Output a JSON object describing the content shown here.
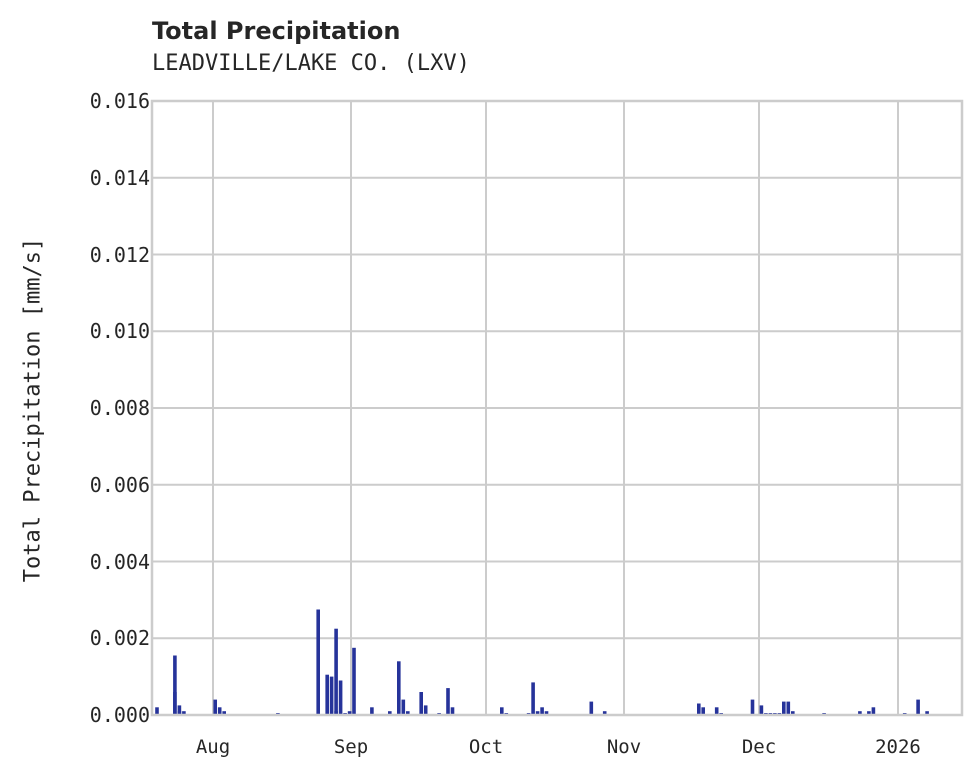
{
  "chart": {
    "title": "Total Precipitation",
    "subtitle": "LEADVILLE/LAKE CO. (LXV)",
    "ylabel": "Total Precipitation [mm/s]",
    "yticks": [
      "0.000",
      "0.002",
      "0.004",
      "0.006",
      "0.008",
      "0.010",
      "0.012",
      "0.014",
      "0.016"
    ],
    "xticks": [
      "Aug",
      "Sep",
      "Oct",
      "Nov",
      "Dec",
      "2026"
    ]
  },
  "colors": {
    "bar": "#26339a",
    "grid": "#cccccc",
    "text": "#262626"
  },
  "chart_data": {
    "type": "bar",
    "title": "Total Precipitation",
    "subtitle": "LEADVILLE/LAKE CO. (LXV)",
    "xlabel": "",
    "ylabel": "Total Precipitation [mm/s]",
    "ylim": [
      0,
      0.016
    ],
    "grid": true,
    "legend": null,
    "x_tick_labels": [
      "Aug",
      "Sep",
      "Oct",
      "Nov",
      "Dec",
      "2026"
    ],
    "x_range_approx": [
      "2025-07-18",
      "2026-01-18"
    ],
    "series": [
      {
        "name": "Total Precipitation",
        "color": "#26339a",
        "points": [
          {
            "date": "2025-07-19",
            "value": 0.0002
          },
          {
            "date": "2025-07-23",
            "value": 0.0006
          },
          {
            "date": "2025-07-23",
            "value": 0.00155
          },
          {
            "date": "2025-07-24",
            "value": 0.00025
          },
          {
            "date": "2025-07-24",
            "value": 0.0001
          },
          {
            "date": "2025-07-25",
            "value": 0.0001
          },
          {
            "date": "2025-08-01",
            "value": 0.0004
          },
          {
            "date": "2025-08-02",
            "value": 0.0002
          },
          {
            "date": "2025-08-03",
            "value": 0.0001
          },
          {
            "date": "2025-08-15",
            "value": 5e-05
          },
          {
            "date": "2025-08-24",
            "value": 0.00275
          },
          {
            "date": "2025-08-26",
            "value": 0.00105
          },
          {
            "date": "2025-08-27",
            "value": 0.001
          },
          {
            "date": "2025-08-28",
            "value": 0.0001
          },
          {
            "date": "2025-08-28",
            "value": 0.00225
          },
          {
            "date": "2025-08-29",
            "value": 0.0009
          },
          {
            "date": "2025-08-30",
            "value": 5e-05
          },
          {
            "date": "2025-08-31",
            "value": 0.0001
          },
          {
            "date": "2025-09-01",
            "value": 0.00175
          },
          {
            "date": "2025-09-05",
            "value": 0.0002
          },
          {
            "date": "2025-09-09",
            "value": 0.0001
          },
          {
            "date": "2025-09-11",
            "value": 0.0014
          },
          {
            "date": "2025-09-12",
            "value": 0.0004
          },
          {
            "date": "2025-09-13",
            "value": 0.0001
          },
          {
            "date": "2025-09-16",
            "value": 0.0006
          },
          {
            "date": "2025-09-17",
            "value": 0.00025
          },
          {
            "date": "2025-09-20",
            "value": 5e-05
          },
          {
            "date": "2025-09-22",
            "value": 0.0007
          },
          {
            "date": "2025-09-23",
            "value": 0.0002
          },
          {
            "date": "2025-10-04",
            "value": 0.0002
          },
          {
            "date": "2025-10-05",
            "value": 5e-05
          },
          {
            "date": "2025-10-10",
            "value": 5e-05
          },
          {
            "date": "2025-10-11",
            "value": 0.00085
          },
          {
            "date": "2025-10-12",
            "value": 0.0001
          },
          {
            "date": "2025-10-13",
            "value": 0.0002
          },
          {
            "date": "2025-10-14",
            "value": 0.0001
          },
          {
            "date": "2025-10-24",
            "value": 0.00035
          },
          {
            "date": "2025-10-27",
            "value": 0.0001
          },
          {
            "date": "2025-11-17",
            "value": 0.0003
          },
          {
            "date": "2025-11-18",
            "value": 0.0002
          },
          {
            "date": "2025-11-21",
            "value": 0.0002
          },
          {
            "date": "2025-11-22",
            "value": 5e-05
          },
          {
            "date": "2025-11-29",
            "value": 0.0004
          },
          {
            "date": "2025-12-01",
            "value": 0.00025
          },
          {
            "date": "2025-12-02",
            "value": 5e-05
          },
          {
            "date": "2025-12-03",
            "value": 5e-05
          },
          {
            "date": "2025-12-04",
            "value": 5e-05
          },
          {
            "date": "2025-12-05",
            "value": 5e-05
          },
          {
            "date": "2025-12-06",
            "value": 0.00035
          },
          {
            "date": "2025-12-07",
            "value": 0.00035
          },
          {
            "date": "2025-12-08",
            "value": 0.0001
          },
          {
            "date": "2025-12-15",
            "value": 5e-05
          },
          {
            "date": "2025-12-23",
            "value": 0.0001
          },
          {
            "date": "2025-12-25",
            "value": 0.0001
          },
          {
            "date": "2025-12-26",
            "value": 0.0002
          },
          {
            "date": "2026-01-02",
            "value": 5e-05
          },
          {
            "date": "2026-01-05",
            "value": 0.0004
          },
          {
            "date": "2026-01-07",
            "value": 0.0001
          }
        ]
      }
    ]
  }
}
